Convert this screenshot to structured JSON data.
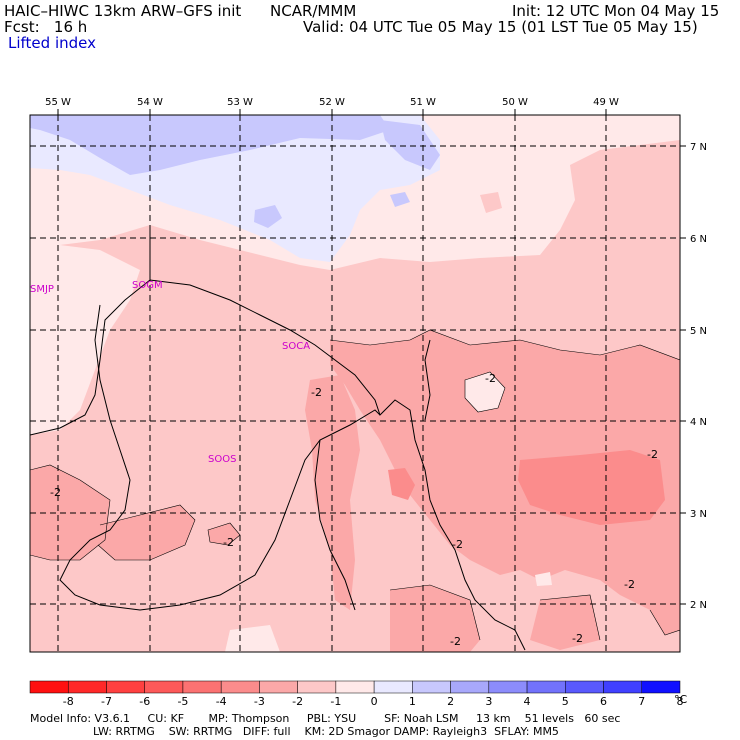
{
  "header": {
    "model": "HAIC–HIWC 13km ARW–GFS init",
    "center": "NCAR/MMM",
    "init": "Init: 12 UTC Mon 04 May 15",
    "fcst": "Fcst:   16 h",
    "valid": "Valid: 04 UTC Tue 05 May 15 (01 LST Tue 05 May 15)",
    "field": "Lifted index"
  },
  "map": {
    "longitudes": [
      "55 W",
      "54 W",
      "53 W",
      "52 W",
      "51 W",
      "50 W",
      "49 W"
    ],
    "latitudes": [
      "7 N",
      "6 N",
      "5 N",
      "4 N",
      "3 N",
      "2 N"
    ],
    "stations": [
      "SMJP",
      "SOGM",
      "SOCA",
      "SOOS"
    ],
    "contour_labels": [
      "-2",
      "-2",
      "-2",
      "-2",
      "-2",
      "-2",
      "-2",
      "-2",
      "-2"
    ]
  },
  "colorbar": {
    "ticks": [
      "-8",
      "-7",
      "-6",
      "-5",
      "-4",
      "-3",
      "-2",
      "-1",
      "0",
      "1",
      "2",
      "3",
      "4",
      "5",
      "6",
      "7",
      "8"
    ],
    "unit": "°C",
    "colors": [
      "#ff1010",
      "#ff2828",
      "#ff4040",
      "#fd5959",
      "#fb7272",
      "#fb8c8c",
      "#fba8a8",
      "#fdc8c8",
      "#ffe9e9",
      "#e9e9ff",
      "#c8c8fd",
      "#a8a8fb",
      "#8c8cfb",
      "#7272fb",
      "#5959fd",
      "#4040ff",
      "#1010ff"
    ]
  },
  "footer": {
    "line1": "Model Info: V3.6.1     CU: KF       MP: Thompson     PBL: YSU        SF: Noah LSM     13 km    51 levels   60 sec",
    "line2": "                  LW: RRTMG    SW: RRTMG   DIFF: full    KM: 2D Smagor DAMP: Rayleigh3  SFLAY: MM5"
  }
}
